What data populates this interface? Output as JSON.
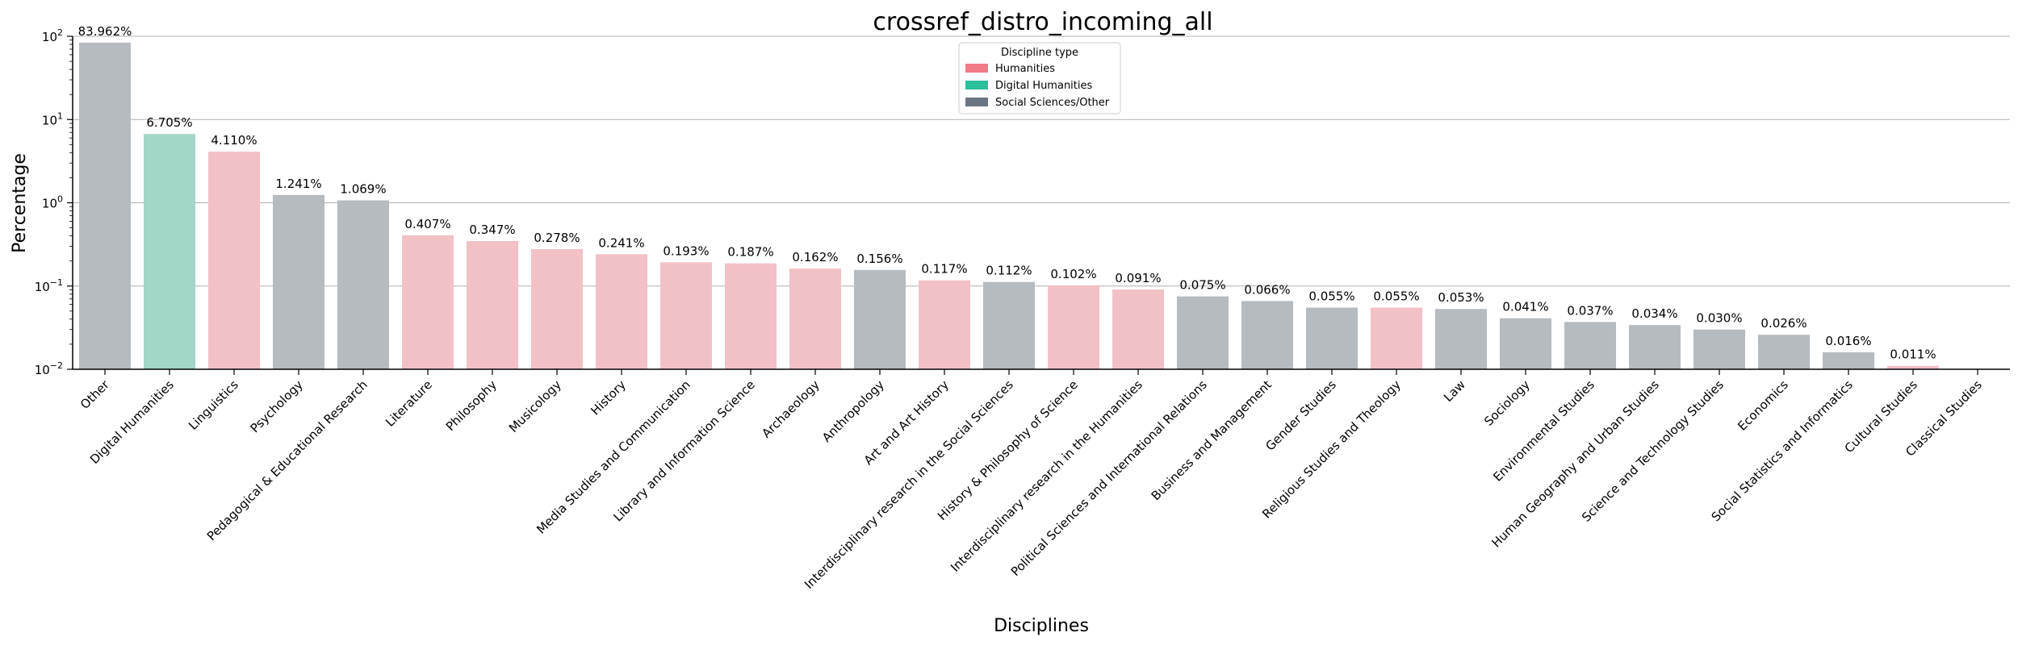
{
  "chart_data": {
    "type": "bar",
    "title": "crossref_distro_incoming_all",
    "xlabel": "Disciplines",
    "ylabel": "Percentage",
    "yscale": "log",
    "ylim": [
      0.01,
      100
    ],
    "yticks": [
      {
        "value": 0.01,
        "base": "10",
        "exp": "−2"
      },
      {
        "value": 0.1,
        "base": "10",
        "exp": "−1"
      },
      {
        "value": 1,
        "base": "10",
        "exp": "0"
      },
      {
        "value": 10,
        "base": "10",
        "exp": "1"
      },
      {
        "value": 100,
        "base": "10",
        "exp": "2"
      }
    ],
    "grid": "horizontal",
    "legend": {
      "title": "Discipline type",
      "position": "top-center",
      "entries": [
        {
          "label": "Humanities",
          "color": "#f07a85"
        },
        {
          "label": "Digital Humanities",
          "color": "#2bbf9e"
        },
        {
          "label": "Social Sciences/Other",
          "color": "#6b7685"
        }
      ]
    },
    "type_colors": {
      "Humanities": "#f2c1c6",
      "Digital Humanities": "#a1d6c8",
      "Social Sciences/Other": "#b6bbc0"
    },
    "categories": [
      "Other",
      "Digital Humanities",
      "Linguistics",
      "Psychology",
      "Pedagogical & Educational Research",
      "Literature",
      "Philosophy",
      "Musicology",
      "History",
      "Media Studies and Communication",
      "Library and Information Science",
      "Archaeology",
      "Anthropology",
      "Art and Art History",
      "Interdisciplinary research in the Social Sciences",
      "History & Philosophy of Science",
      "Interdisciplinary research in the Humanities",
      "Political Sciences and International Relations",
      "Business and Management",
      "Gender Studies",
      "Religious Studies and Theology",
      "Law",
      "Sociology",
      "Environmental Studies",
      "Human Geography and Urban Studies",
      "Science and Technology Studies",
      "Economics",
      "Social Statistics and Informatics",
      "Cultural Studies",
      "Classical Studies"
    ],
    "values": [
      83.962,
      6.705,
      4.11,
      1.241,
      1.069,
      0.407,
      0.347,
      0.278,
      0.241,
      0.193,
      0.187,
      0.162,
      0.156,
      0.117,
      0.112,
      0.102,
      0.091,
      0.075,
      0.066,
      0.055,
      0.055,
      0.053,
      0.041,
      0.037,
      0.034,
      0.03,
      0.026,
      0.016,
      0.011,
      null
    ],
    "value_labels": [
      "83.962%",
      "6.705%",
      "4.110%",
      "1.241%",
      "1.069%",
      "0.407%",
      "0.347%",
      "0.278%",
      "0.241%",
      "0.193%",
      "0.187%",
      "0.162%",
      "0.156%",
      "0.117%",
      "0.112%",
      "0.102%",
      "0.091%",
      "0.075%",
      "0.066%",
      "0.055%",
      "0.055%",
      "0.053%",
      "0.041%",
      "0.037%",
      "0.034%",
      "0.030%",
      "0.026%",
      "0.016%",
      "0.011%",
      ""
    ],
    "discipline_types": [
      "Social Sciences/Other",
      "Digital Humanities",
      "Humanities",
      "Social Sciences/Other",
      "Social Sciences/Other",
      "Humanities",
      "Humanities",
      "Humanities",
      "Humanities",
      "Humanities",
      "Humanities",
      "Humanities",
      "Social Sciences/Other",
      "Humanities",
      "Social Sciences/Other",
      "Humanities",
      "Humanities",
      "Social Sciences/Other",
      "Social Sciences/Other",
      "Social Sciences/Other",
      "Humanities",
      "Social Sciences/Other",
      "Social Sciences/Other",
      "Social Sciences/Other",
      "Social Sciences/Other",
      "Social Sciences/Other",
      "Social Sciences/Other",
      "Social Sciences/Other",
      "Humanities",
      "Humanities"
    ]
  }
}
